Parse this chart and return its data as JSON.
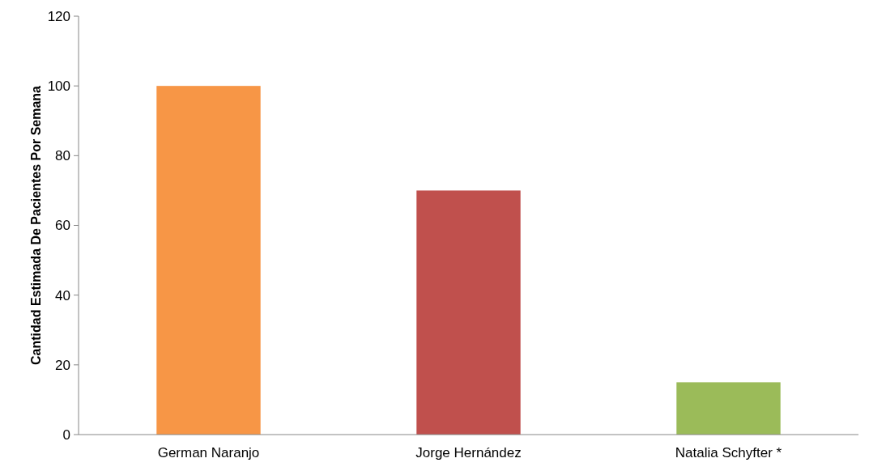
{
  "chart_data": {
    "type": "bar",
    "ylabel": "Cantidad Estimada De Pacientes Por Semana",
    "categories": [
      "German Naranjo",
      "Jorge Hernández",
      "Natalia Schyfter *"
    ],
    "values": [
      100,
      70,
      15
    ],
    "colors": [
      "#f79646",
      "#c0504d",
      "#9bbb59"
    ],
    "ylim": [
      0,
      120
    ],
    "yticks": [
      0,
      20,
      40,
      60,
      80,
      100,
      120
    ],
    "grid": false
  }
}
